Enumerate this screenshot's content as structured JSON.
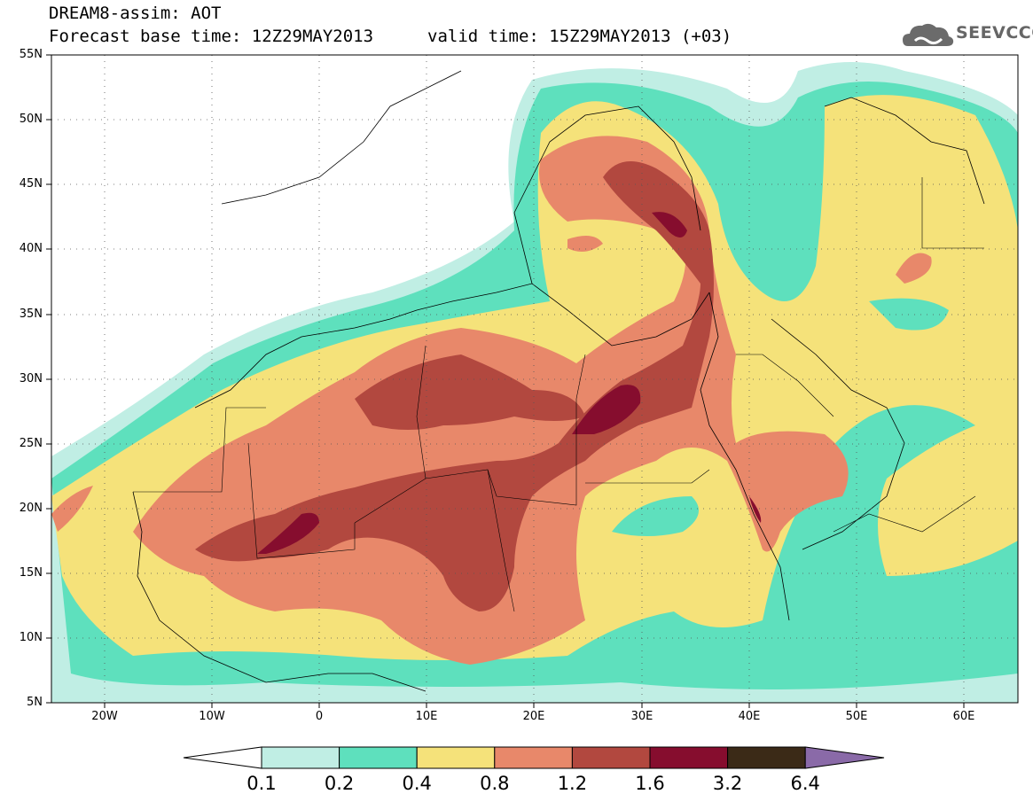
{
  "title": {
    "line1": "DREAM8-assim: AOT",
    "line2": "Forecast base time: 12Z29MAY2013",
    "valid": "valid time: 15Z29MAY2013 (+03)"
  },
  "logo": {
    "text": "SEEVCCC",
    "icon": "cloud-logo-icon",
    "color": "#6b6b6b"
  },
  "map": {
    "projection": "lat-lon",
    "lon_range": [
      -25,
      65
    ],
    "lat_range": [
      5,
      55
    ],
    "grid": "dotted",
    "lat_labels": [
      "55N",
      "50N",
      "45N",
      "40N",
      "35N",
      "30N",
      "25N",
      "20N",
      "15N",
      "10N",
      "5N"
    ],
    "lon_labels": [
      "20W",
      "10W",
      "0",
      "10E",
      "20E",
      "30E",
      "40E",
      "50E",
      "60E"
    ]
  },
  "colorbar": {
    "levels": [
      "0.1",
      "0.2",
      "0.4",
      "0.8",
      "1.2",
      "1.6",
      "3.2",
      "6.4"
    ],
    "colors": [
      "#c0eee4",
      "#5ee0bd",
      "#f5e27a",
      "#e8886a",
      "#b2483f",
      "#860d2e",
      "#3b2a17",
      "#8a6aa8"
    ]
  }
}
